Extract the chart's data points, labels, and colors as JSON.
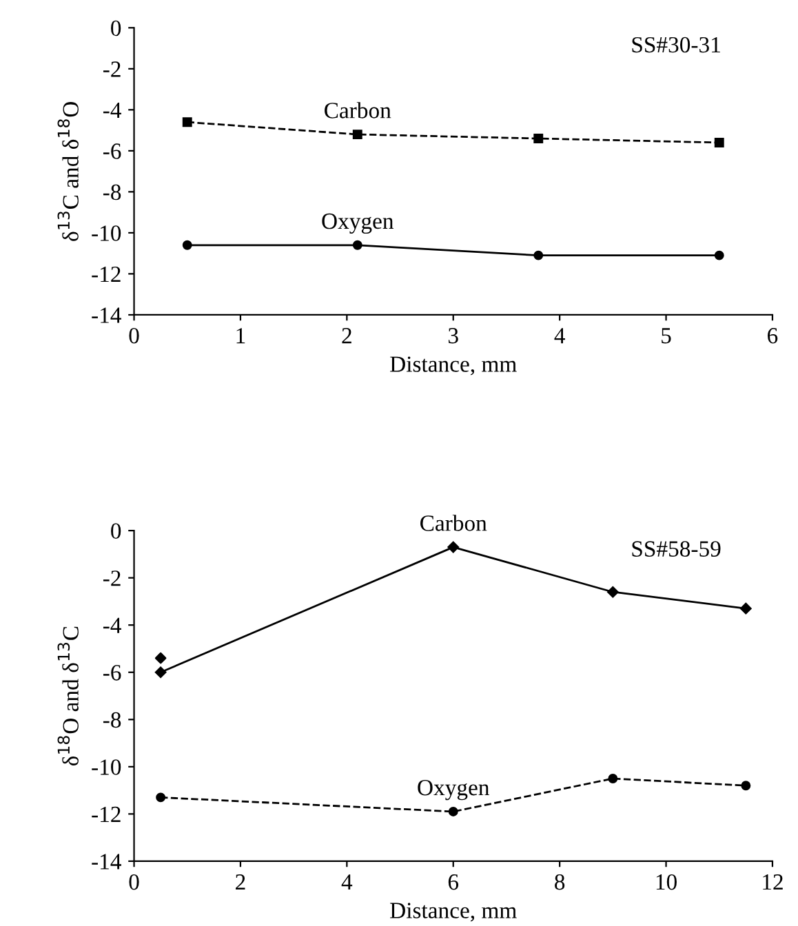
{
  "chart_data": [
    {
      "type": "line",
      "xlabel": "Distance, mm",
      "ylabel": "δ$^{13}$C and δ$^{18}$O",
      "annotations": [
        "SS#30-31"
      ],
      "xlim": [
        0,
        6
      ],
      "xticks": [
        0,
        1,
        2,
        3,
        4,
        5,
        6
      ],
      "ylim": [
        -14,
        0
      ],
      "yticks": [
        -14,
        -12,
        -10,
        -8,
        -6,
        -4,
        -2,
        0
      ],
      "grid": false,
      "legend": false,
      "series": [
        {
          "name": "Carbon",
          "color": "#000000",
          "x": [
            0.5,
            2.1,
            3.8,
            5.5
          ],
          "values": [
            -4.6,
            -5.2,
            -5.4,
            -5.6
          ],
          "marker": "square",
          "line_style": "dashed"
        },
        {
          "name": "Oxygen",
          "color": "#000000",
          "x": [
            0.5,
            2.1,
            3.8,
            5.5
          ],
          "values": [
            -10.6,
            -10.6,
            -11.1,
            -11.1
          ],
          "marker": "circle",
          "line_style": "solid"
        }
      ]
    },
    {
      "type": "line",
      "xlabel": "Distance, mm",
      "ylabel": "δ$^{18}$O and δ$^{13}$C",
      "annotations": [
        "SS#58-59"
      ],
      "xlim": [
        0,
        12
      ],
      "xticks": [
        0,
        2,
        4,
        6,
        8,
        10,
        12
      ],
      "ylim": [
        -14,
        0
      ],
      "yticks": [
        -14,
        -12,
        -10,
        -8,
        -6,
        -4,
        -2,
        0
      ],
      "grid": false,
      "legend": false,
      "series": [
        {
          "name": "Carbon",
          "color": "#000000",
          "x": [
            0.5,
            6,
            9,
            11.5
          ],
          "values": [
            -6.0,
            -0.7,
            -2.6,
            -3.3
          ],
          "marker": "diamond",
          "line_style": "solid"
        },
        {
          "type": "scatter",
          "color": "#000000",
          "x": [
            0.5
          ],
          "values": [
            -5.4
          ],
          "marker": "diamond"
        },
        {
          "name": "Oxygen",
          "color": "#000000",
          "x": [
            0.5,
            6,
            9,
            11.5
          ],
          "values": [
            -11.3,
            -11.9,
            -10.5,
            -10.8
          ],
          "marker": "circle",
          "line_style": "dashed"
        }
      ]
    }
  ]
}
